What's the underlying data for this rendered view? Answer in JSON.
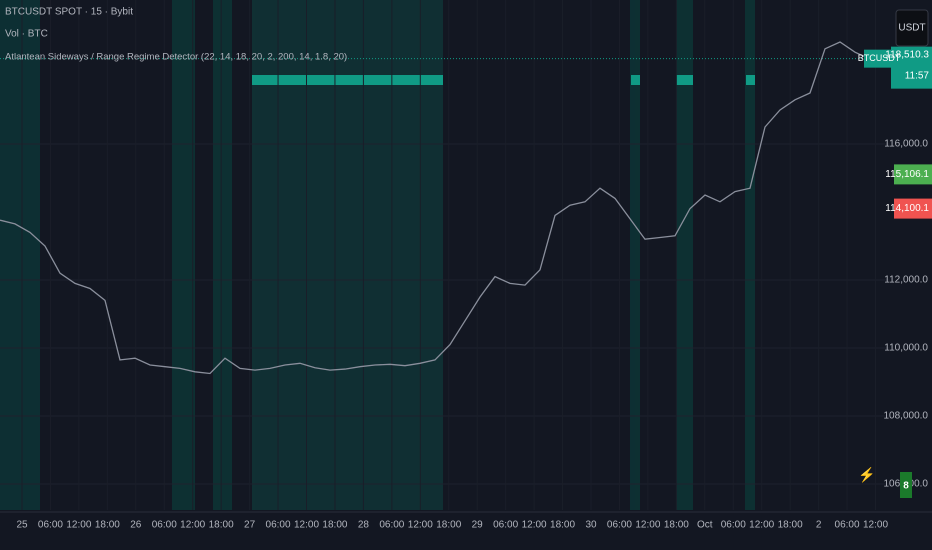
{
  "header": {
    "symbol": "BTCUSDT SPOT · 15 · Bybit",
    "volume": "Vol · BTC",
    "indicator": "Atlantean Sideways / Range Regime Detector (22, 14, 18, 20, 2, 200, 14, 1.8, 20)"
  },
  "price_axis": {
    "ticks": [
      {
        "value": 116000,
        "label": "116,000.0"
      },
      {
        "value": 112000,
        "label": "112,000.0"
      },
      {
        "value": 110000,
        "label": "110,000.0"
      },
      {
        "value": 108000,
        "label": "108,000.0"
      },
      {
        "value": 106000,
        "label": "106,000.0"
      }
    ]
  },
  "time_axis": {
    "labels": [
      "25",
      "06:00",
      "12:00",
      "18:00",
      "26",
      "06:00",
      "12:00",
      "18:00",
      "27",
      "06:00",
      "12:00",
      "18:00",
      "28",
      "06:00",
      "12:00",
      "18:00",
      "29",
      "06:00",
      "12:00",
      "18:00",
      "30",
      "06:00",
      "12:00",
      "18:00",
      "Oct",
      "06:00",
      "12:00",
      "18:00",
      "2",
      "06:00",
      "12:00"
    ]
  },
  "price": [
    113760,
    113650,
    113400,
    113000,
    112200,
    111900,
    111750,
    111400,
    109650,
    109700,
    109500,
    109450,
    109400,
    109300,
    109250,
    109700,
    109400,
    109350,
    109400,
    109500,
    109550,
    109420,
    109350,
    109380,
    109450,
    109500,
    109520,
    109480,
    109550,
    109650,
    110100,
    110800,
    111500,
    112100,
    111900,
    111850,
    112300,
    113900,
    114200,
    114300,
    114700,
    114400,
    113800,
    113200,
    113250,
    113300,
    114100,
    114500,
    114300,
    114600,
    114700,
    116500,
    117000,
    117300,
    117500,
    118800,
    119000,
    118700,
    118500
  ],
  "last_price": {
    "symbol": "BTCUSDT",
    "value": 118510.3,
    "label": "118,510.3",
    "countdown": "11:57"
  },
  "range_tags": [
    {
      "value": 115106.1,
      "label": "115,106.1",
      "color": "#4caf50"
    },
    {
      "value": 114100.1,
      "label": "114,100.1",
      "color": "#f05350"
    }
  ],
  "currency_button": "USDT",
  "badge": "8"
}
